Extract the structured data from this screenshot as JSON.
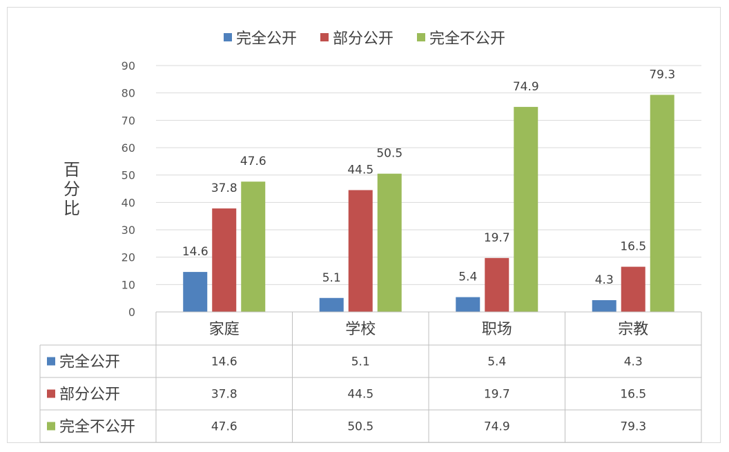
{
  "chart_data": {
    "type": "bar",
    "categories": [
      "家庭",
      "学校",
      "职场",
      "宗教"
    ],
    "series": [
      {
        "name": "完全公开",
        "color": "#4f81bd",
        "values": [
          14.6,
          5.1,
          5.4,
          4.3
        ]
      },
      {
        "name": "部分公开",
        "color": "#c0504d",
        "values": [
          37.8,
          44.5,
          19.7,
          16.5
        ]
      },
      {
        "name": "完全不公开",
        "color": "#9bbb59",
        "values": [
          47.6,
          50.5,
          74.9,
          79.3
        ]
      }
    ],
    "ylabel": "百分比",
    "ylim": [
      0,
      90
    ],
    "yticks": [
      0,
      10,
      20,
      30,
      40,
      50,
      60,
      70,
      80,
      90
    ],
    "grid": true,
    "legend_position": "top",
    "data_table": true
  }
}
